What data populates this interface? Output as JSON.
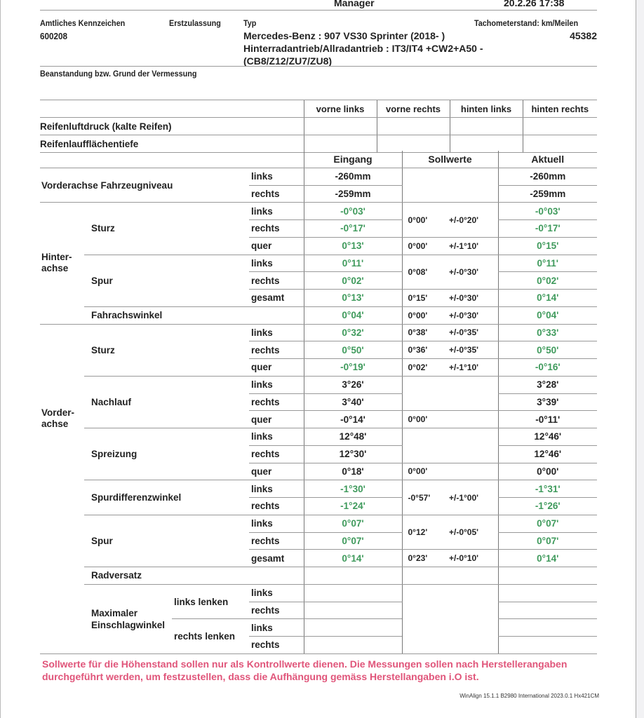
{
  "header": {
    "top_label": "Manager",
    "datetime": "20.2.26 17:38"
  },
  "vehicle": {
    "plate_label": "Amtliches Kennzeichen",
    "plate": "600208",
    "registration_label": "Erstzulassung",
    "registration": "",
    "type_label": "Typ",
    "type_lines": [
      "Mercedes-Benz : 907 VS30 Sprinter (2018-  )",
      "Hinterradantrieb/Allradantrieb : IT3/IT4   +CW2+A50    -",
      "(CB8/Z12/ZU7/ZU8)"
    ],
    "odometer_label": "Tachometerstand: km/Meilen",
    "odometer": "45382"
  },
  "complaint_label": "Beanstandung bzw. Grund der Vermessung",
  "tires": {
    "columns": [
      "vorne links",
      "vorne rechts",
      "hinten links",
      "hinten rechts"
    ],
    "rows": [
      {
        "label": "Reifenluftdruck (kalte Reifen)",
        "values": [
          "",
          "",
          "",
          ""
        ]
      },
      {
        "label": "Reifenlaufflächentiefe",
        "values": [
          "",
          "",
          "",
          ""
        ]
      }
    ]
  },
  "measurement_headers": {
    "eingang": "Eingang",
    "soll": "Sollwerte",
    "aktuell": "Aktuell"
  },
  "colors": {
    "in_tolerance": "#3f9a5c",
    "note": "#e0557a"
  },
  "sections": [
    {
      "group": "",
      "items": [
        {
          "name": "Vorderachse Fahrzeugniveau",
          "rows": [
            {
              "side": "links",
              "eingang": "-260mm",
              "aktuell": "-260mm"
            },
            {
              "side": "rechts",
              "eingang": "-259mm",
              "aktuell": "-259mm"
            }
          ],
          "soll": [
            {
              "value": "",
              "tol": "",
              "covers_rows": 2
            }
          ]
        }
      ]
    },
    {
      "group": "Hinter-\nachse",
      "items": [
        {
          "name": "Sturz",
          "rows": [
            {
              "side": "links",
              "eingang": "-0°03'",
              "aktuell": "-0°03'",
              "ok": true
            },
            {
              "side": "rechts",
              "eingang": "-0°17'",
              "aktuell": "-0°17'",
              "ok": true
            },
            {
              "side": "quer",
              "eingang": "0°13'",
              "aktuell": "0°15'",
              "ok": true
            }
          ],
          "soll": [
            {
              "value": "0°00'",
              "tol": "+/-0°20'",
              "covers_rows": 2
            },
            {
              "value": "0°00'",
              "tol": "+/-1°10'",
              "covers_rows": 1
            }
          ]
        },
        {
          "name": "Spur",
          "rows": [
            {
              "side": "links",
              "eingang": "0°11'",
              "aktuell": "0°11'",
              "ok": true
            },
            {
              "side": "rechts",
              "eingang": "0°02'",
              "aktuell": "0°02'",
              "ok": true
            },
            {
              "side": "gesamt",
              "eingang": "0°13'",
              "aktuell": "0°14'",
              "ok": true
            }
          ],
          "soll": [
            {
              "value": "0°08'",
              "tol": "+/-0°30'",
              "covers_rows": 2
            },
            {
              "value": "0°15'",
              "tol": "+/-0°30'",
              "covers_rows": 1
            }
          ]
        },
        {
          "name": "Fahrachswinkel",
          "rows": [
            {
              "side": "",
              "eingang": "0°04'",
              "aktuell": "0°04'",
              "ok": true
            }
          ],
          "soll": [
            {
              "value": "0°00'",
              "tol": "+/-0°30'",
              "covers_rows": 1
            }
          ]
        }
      ]
    },
    {
      "group": "Vorder-\nachse",
      "items": [
        {
          "name": "Sturz",
          "rows": [
            {
              "side": "links",
              "eingang": "0°32'",
              "aktuell": "0°33'",
              "ok": true
            },
            {
              "side": "rechts",
              "eingang": "0°50'",
              "aktuell": "0°50'",
              "ok": true
            },
            {
              "side": "quer",
              "eingang": "-0°19'",
              "aktuell": "-0°16'",
              "ok": true
            }
          ],
          "soll": [
            {
              "value": "0°38'",
              "tol": "+/-0°35'",
              "covers_rows": 1
            },
            {
              "value": "0°36'",
              "tol": "+/-0°35'",
              "covers_rows": 1
            },
            {
              "value": "0°02'",
              "tol": "+/-1°10'",
              "covers_rows": 1
            }
          ]
        },
        {
          "name": "Nachlauf",
          "rows": [
            {
              "side": "links",
              "eingang": "3°26'",
              "aktuell": "3°28'"
            },
            {
              "side": "rechts",
              "eingang": "3°40'",
              "aktuell": "3°39'"
            },
            {
              "side": "quer",
              "eingang": "-0°14'",
              "aktuell": "-0°11'"
            }
          ],
          "soll": [
            {
              "value": "",
              "tol": "",
              "covers_rows": 2
            },
            {
              "value": "0°00'",
              "tol": "",
              "covers_rows": 1
            }
          ]
        },
        {
          "name": "Spreizung",
          "rows": [
            {
              "side": "links",
              "eingang": "12°48'",
              "aktuell": "12°46'"
            },
            {
              "side": "rechts",
              "eingang": "12°30'",
              "aktuell": "12°46'"
            },
            {
              "side": "quer",
              "eingang": "0°18'",
              "aktuell": "0°00'"
            }
          ],
          "soll": [
            {
              "value": "",
              "tol": "",
              "covers_rows": 2
            },
            {
              "value": "0°00'",
              "tol": "",
              "covers_rows": 1
            }
          ]
        },
        {
          "name": "Spurdifferenzwinkel",
          "rows": [
            {
              "side": "links",
              "eingang": "-1°30'",
              "aktuell": "-1°31'",
              "ok": true
            },
            {
              "side": "rechts",
              "eingang": "-1°24'",
              "aktuell": "-1°26'",
              "ok": true
            }
          ],
          "soll": [
            {
              "value": "-0°57'",
              "tol": "+/-1°00'",
              "covers_rows": 2
            }
          ]
        },
        {
          "name": "Spur",
          "rows": [
            {
              "side": "links",
              "eingang": "0°07'",
              "aktuell": "0°07'",
              "ok": true
            },
            {
              "side": "rechts",
              "eingang": "0°07'",
              "aktuell": "0°07'",
              "ok": true
            },
            {
              "side": "gesamt",
              "eingang": "0°14'",
              "aktuell": "0°14'",
              "ok": true
            }
          ],
          "soll": [
            {
              "value": "0°12'",
              "tol": "+/-0°05'",
              "covers_rows": 2
            },
            {
              "value": "0°23'",
              "tol": "+/-0°10'",
              "covers_rows": 1
            }
          ]
        },
        {
          "name": "Radversatz",
          "rows": [
            {
              "side": "",
              "eingang": "",
              "aktuell": ""
            }
          ],
          "soll": [
            {
              "value": "",
              "tol": "",
              "covers_rows": 1
            }
          ]
        },
        {
          "name": "Maximaler Einschlagwinkel",
          "subs": [
            {
              "label": "links lenken",
              "rows": [
                {
                  "side": "links",
                  "eingang": "",
                  "aktuell": ""
                },
                {
                  "side": "rechts",
                  "eingang": "",
                  "aktuell": ""
                }
              ]
            },
            {
              "label": "rechts lenken",
              "rows": [
                {
                  "side": "links",
                  "eingang": "",
                  "aktuell": ""
                },
                {
                  "side": "rechts",
                  "eingang": "",
                  "aktuell": ""
                }
              ]
            }
          ],
          "soll": [
            {
              "value": "",
              "tol": "",
              "covers_rows": 4
            }
          ]
        }
      ]
    }
  ],
  "footer": {
    "note": "Sollwerte für die Höhenstand sollen nur als Kontrollwerte dienen. Die Messungen sollen nach Herstellerangaben durchgeführt werden, um festzustellen, dass die Aufhängung gemäss Herstellangaben i.O ist.",
    "version": "WinAlign 15.1.1 B2980  International 2023.0.1 Hx421CM"
  }
}
